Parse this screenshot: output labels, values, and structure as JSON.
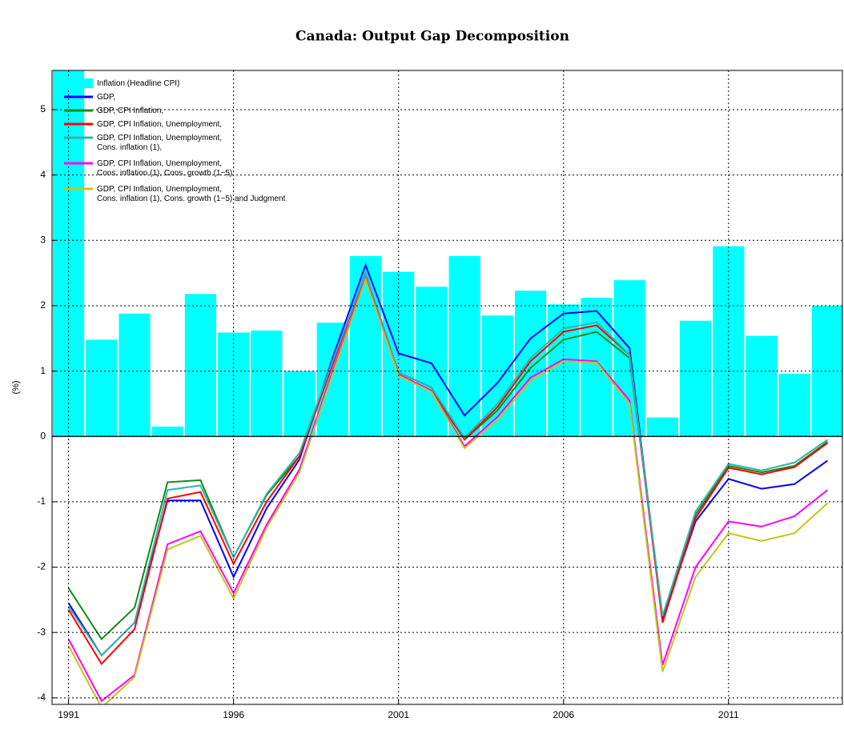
{
  "chart_data": {
    "type": "combo",
    "title": "Canada: Output Gap Decomposition",
    "y_label": "(%)",
    "x": [
      1991,
      1992,
      1993,
      1994,
      1995,
      1996,
      1997,
      1998,
      1999,
      2000,
      2001,
      2002,
      2003,
      2004,
      2005,
      2006,
      2007,
      2008,
      2009,
      2010,
      2011,
      2012,
      2013,
      2014
    ],
    "series": [
      {
        "name": "Inflation (Headline CPI)",
        "type": "bar",
        "color": "#00ffff",
        "values": [
          5.6,
          1.48,
          1.88,
          0.15,
          2.18,
          1.59,
          1.62,
          1.0,
          1.74,
          2.76,
          2.52,
          2.29,
          2.76,
          1.85,
          2.23,
          2.02,
          2.12,
          2.39,
          0.29,
          1.77,
          2.91,
          1.54,
          0.96,
          2.0
        ]
      },
      {
        "name": "GDP,",
        "type": "line",
        "color": "#0000ff",
        "values": [
          -2.55,
          -3.35,
          -2.85,
          -0.98,
          -0.98,
          -2.15,
          -1.1,
          -0.35,
          1.2,
          2.62,
          1.27,
          1.12,
          0.32,
          0.82,
          1.5,
          1.88,
          1.92,
          1.35,
          -2.8,
          -1.3,
          -0.65,
          -0.8,
          -0.73,
          -0.37
        ]
      },
      {
        "name": "GDP, CPI Inflation,",
        "type": "line",
        "color": "#138a13",
        "values": [
          -2.32,
          -3.1,
          -2.62,
          -0.7,
          -0.67,
          -1.85,
          -0.9,
          -0.3,
          1.1,
          2.5,
          0.95,
          0.7,
          -0.05,
          0.4,
          1.05,
          1.48,
          1.6,
          1.2,
          -2.75,
          -1.2,
          -0.45,
          -0.55,
          -0.45,
          -0.08
        ]
      },
      {
        "name": "GDP, CPI Inflation, Unemployment,",
        "type": "line",
        "color": "#ff0000",
        "values": [
          -2.65,
          -3.48,
          -2.95,
          -0.95,
          -0.85,
          -1.95,
          -1.0,
          -0.3,
          1.1,
          2.5,
          0.98,
          0.75,
          -0.05,
          0.45,
          1.15,
          1.6,
          1.7,
          1.25,
          -2.85,
          -1.25,
          -0.48,
          -0.58,
          -0.47,
          -0.1
        ]
      },
      {
        "name": "GDP, CPI Inflation, Unemployment,\nCons. inflation (1),",
        "type": "line",
        "color": "#2fb5b0",
        "values": [
          -2.6,
          -3.35,
          -2.85,
          -0.82,
          -0.75,
          -1.85,
          -0.88,
          -0.25,
          1.15,
          2.5,
          0.98,
          0.75,
          -0.02,
          0.5,
          1.2,
          1.65,
          1.75,
          1.25,
          -2.75,
          -1.15,
          -0.42,
          -0.52,
          -0.4,
          -0.05
        ]
      },
      {
        "name": "GDP, CPI Inflation, Unemployment,\nCons. inflation (1), Cons. growth (1−5)",
        "type": "line",
        "color": "#ff00ff",
        "values": [
          -3.1,
          -4.05,
          -3.65,
          -1.65,
          -1.45,
          -2.4,
          -1.35,
          -0.5,
          1.0,
          2.42,
          0.95,
          0.7,
          -0.15,
          0.3,
          0.9,
          1.18,
          1.15,
          0.55,
          -3.5,
          -2.0,
          -1.3,
          -1.38,
          -1.22,
          -0.82
        ]
      },
      {
        "name": "GDP, CPI Inflation, Unemployment,\nCons. inflation (1), Cons. growth (1−5) and Judgment",
        "type": "line",
        "color": "#c4c41a",
        "values": [
          -3.2,
          -4.15,
          -3.68,
          -1.73,
          -1.52,
          -2.48,
          -1.4,
          -0.55,
          0.95,
          2.4,
          0.93,
          0.68,
          -0.18,
          0.25,
          0.85,
          1.15,
          1.13,
          0.5,
          -3.6,
          -2.15,
          -1.48,
          -1.6,
          -1.48,
          -1.02
        ]
      }
    ],
    "xlim": [
      1990.5,
      2014.45
    ],
    "ylim": [
      -4.1,
      5.6
    ],
    "xticks": [
      1991,
      1996,
      2001,
      2006,
      2011
    ],
    "yticks": [
      -4,
      -3,
      -2,
      -1,
      0,
      1,
      2,
      3,
      4,
      5
    ],
    "grid": true,
    "legend": "upper-left"
  }
}
